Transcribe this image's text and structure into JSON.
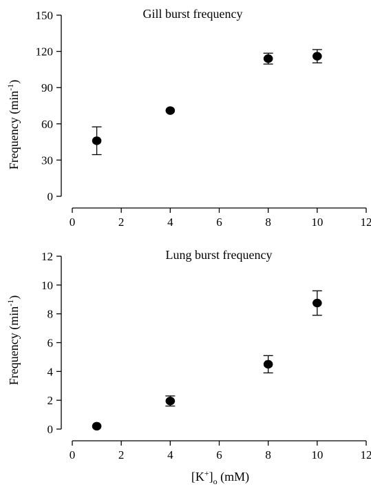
{
  "chart_data": [
    {
      "type": "scatter",
      "title": "Gill burst frequency",
      "ylabel_main": "Frequency (min",
      "ylabel_sup": "-1",
      "ylabel_close": ")",
      "xlabel": "",
      "xlim": [
        0,
        12
      ],
      "ylim": [
        0,
        150
      ],
      "xticks": [
        0,
        2,
        4,
        6,
        8,
        10,
        12
      ],
      "yticks": [
        0,
        30,
        60,
        90,
        120,
        150
      ],
      "points": [
        {
          "x": 1,
          "y": 46,
          "err": 11.5
        },
        {
          "x": 4,
          "y": 71,
          "err": 0
        },
        {
          "x": 8,
          "y": 114,
          "err": 4.5
        },
        {
          "x": 10,
          "y": 116,
          "err": 5.5
        }
      ]
    },
    {
      "type": "scatter",
      "title": "Lung burst frequency",
      "ylabel_main": "Frequency (min",
      "ylabel_sup": "-1",
      "ylabel_close": ")",
      "xlabel_pre": "[K",
      "xlabel_sup": "+",
      "xlabel_mid": "]",
      "xlabel_sub": "o",
      "xlabel_post": " (mM)",
      "xlim": [
        0,
        12
      ],
      "ylim": [
        0,
        12
      ],
      "xticks": [
        0,
        2,
        4,
        6,
        8,
        10,
        12
      ],
      "yticks": [
        0,
        2,
        4,
        6,
        8,
        10,
        12
      ],
      "points": [
        {
          "x": 1,
          "y": 0.2,
          "err": 0
        },
        {
          "x": 4,
          "y": 1.95,
          "err": 0.35
        },
        {
          "x": 8,
          "y": 4.5,
          "err": 0.6
        },
        {
          "x": 10,
          "y": 8.75,
          "err": 0.85
        }
      ]
    }
  ]
}
